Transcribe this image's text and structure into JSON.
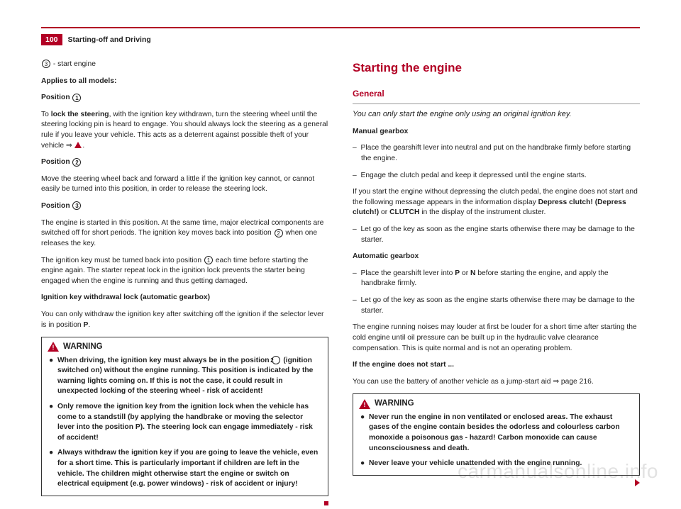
{
  "header": {
    "pageNumber": "100",
    "section": "Starting-off and Driving"
  },
  "left": {
    "p_start": " - start engine",
    "applies": "Applies to all models:",
    "pos1_label": "Position ",
    "pos1_text_a": "To ",
    "pos1_text_b": "lock the steering",
    "pos1_text_c": ", with the ignition key withdrawn, turn the steering wheel until the steering locking pin is heard to engage. You should always lock the steering as a general rule if you leave your vehicle. This acts as a deterrent against possible theft of your vehicle ⇒ ",
    "pos2_label": "Position ",
    "pos2_text": "Move the steering wheel back and forward a little if the ignition key cannot, or cannot easily be turned into this position, in order to release the steering lock.",
    "pos3_label": "Position ",
    "pos3_text_a": "The engine is started in this position. At the same time, major electrical components are switched off for short periods. The ignition key moves back into position ",
    "pos3_text_b": " when one releases the key.",
    "must_text_a": "The ignition key must be turned back into position ",
    "must_text_b": " each time before starting the engine again. The starter repeat lock in the ignition lock prevents the starter being engaged when the engine is running and thus getting damaged.",
    "ikw_title": "Ignition key withdrawal lock (automatic gearbox)",
    "ikw_text_a": "You can only withdraw the ignition key after switching off the ignition if the selector lever is in position ",
    "ikw_text_b": "P",
    "ikw_text_c": ".",
    "warning_title": "WARNING",
    "w1a": "When driving, the ignition key must always be in the position ",
    "w1b": " (ignition switched on) without the engine running. This position is indicated by the warning lights coming on. If this is not the case, it could result in unexpected locking of the steering wheel - risk of accident!",
    "w2": "Only remove the ignition key from the ignition lock when the vehicle has come to a standstill (by applying the handbrake or moving the selector lever into the position P). The steering lock can engage immediately - risk of accident!",
    "w3": "Always withdraw the ignition key if you are going to leave the vehicle, even for a short time. This is particularly important if children are left in the vehicle. The children might otherwise start the engine or switch on electrical equipment (e.g. power windows) - risk of accident or injury!"
  },
  "right": {
    "h1": "Starting the engine",
    "h2": "General",
    "intro": "You can only start the engine only using an original ignition key.",
    "mg_title": "Manual gearbox",
    "mg1": "Place the gearshift lever into neutral and put on the handbrake firmly before starting the engine.",
    "mg2": "Engage the clutch pedal and keep it depressed until the engine starts.",
    "mg_note_a": "If you start the engine without depressing the clutch pedal, the engine does not start and the following message appears in the information display ",
    "mg_note_b": "Depress clutch! (Depress clutch!)",
    "mg_note_c": " or ",
    "mg_note_d": "CLUTCH",
    "mg_note_e": " in the display of the instrument cluster.",
    "mg3": "Let go of the key as soon as the engine starts otherwise there may be damage to the starter.",
    "ag_title": "Automatic gearbox",
    "ag1_a": "Place the gearshift lever into ",
    "ag1_b": "P",
    "ag1_c": " or ",
    "ag1_d": "N",
    "ag1_e": " before starting the engine, and apply the handbrake firmly.",
    "ag2": "Let go of the key as soon as the engine starts otherwise there may be damage to the starter.",
    "noise": "The engine running noises may louder at first be louder for a short time after starting the cold engine until oil pressure can be built up in the hydraulic valve clearance compensation. This is quite normal and is not an operating problem.",
    "nostart_title": "If the engine does not start ...",
    "nostart_text": "You can use the battery of another vehicle as a jump-start aid ⇒ page 216.",
    "warning_title": "WARNING",
    "rw1": "Never run the engine in non ventilated or enclosed areas. The exhaust gases of the engine contain besides the odorless and colourless carbon monoxide a poisonous gas - hazard! Carbon monoxide can cause unconsciousness and death.",
    "rw2": "Never leave your vehicle unattended with the engine running."
  },
  "watermark": "carmanualsonline.info"
}
